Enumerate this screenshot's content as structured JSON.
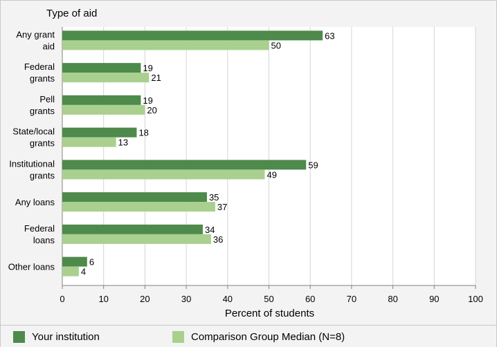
{
  "chart_data": {
    "type": "bar",
    "orientation": "horizontal",
    "title": "Type of aid",
    "xlabel": "Percent of students",
    "xlim": [
      0,
      100
    ],
    "xticks": [
      "0",
      "10",
      "20",
      "30",
      "40",
      "50",
      "60",
      "70",
      "80",
      "90",
      "100"
    ],
    "grid": true,
    "categories": [
      [
        "Any grant",
        "aid"
      ],
      [
        "Federal",
        "grants"
      ],
      [
        "Pell",
        "grants"
      ],
      [
        "State/local",
        "grants"
      ],
      [
        "Institutional",
        "grants"
      ],
      [
        "Any loans"
      ],
      [
        "Federal",
        "loans"
      ],
      [
        "Other loans"
      ]
    ],
    "series": [
      {
        "name": "Your institution",
        "color": "#4e8a4b",
        "values": [
          63,
          19,
          19,
          18,
          59,
          35,
          34,
          6
        ]
      },
      {
        "name": "Comparison Group Median (N=8)",
        "color": "#a9d08e",
        "values": [
          50,
          21,
          20,
          13,
          49,
          37,
          36,
          4
        ]
      }
    ],
    "legend_position": "bottom"
  }
}
